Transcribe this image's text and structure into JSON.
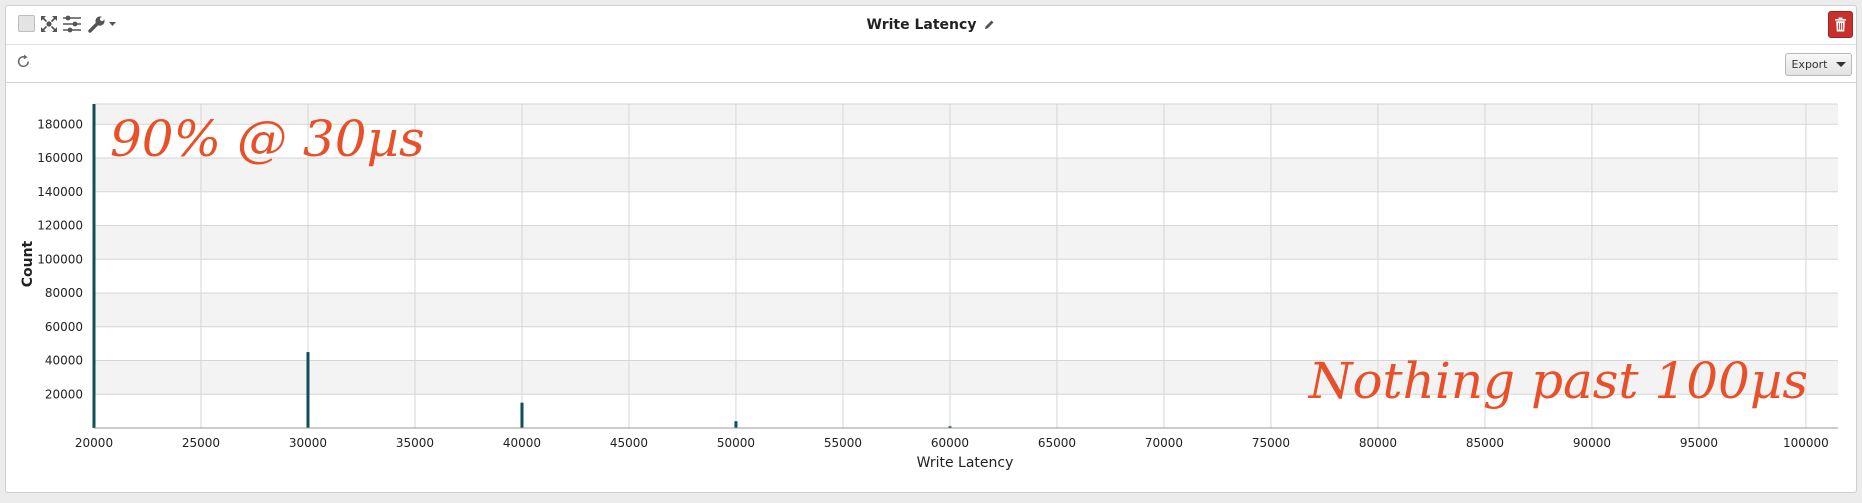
{
  "panel": {
    "title": "Write Latency",
    "export_label": "Export"
  },
  "icons": {
    "select": "checkbox",
    "expand": "expand-arrows-icon",
    "settings": "sliders-icon",
    "wrench": "wrench-icon",
    "edit": "pencil-icon",
    "delete": "trash-icon",
    "refresh": "refresh-icon"
  },
  "colors": {
    "bar": "#0f4f55",
    "annotation": "#e8502a",
    "delete_button": "#c9302c"
  },
  "annotations": {
    "top_left": "90% @ 30µs",
    "bottom_right": "Nothing past 100µs"
  },
  "chart_data": {
    "type": "bar",
    "title": "",
    "xlabel": "Write Latency",
    "ylabel": "Count",
    "xlim": [
      20000,
      101500
    ],
    "ylim": [
      0,
      192000
    ],
    "x_ticks": [
      20000,
      25000,
      30000,
      35000,
      40000,
      45000,
      50000,
      55000,
      60000,
      65000,
      70000,
      75000,
      80000,
      85000,
      90000,
      95000,
      100000
    ],
    "y_ticks": [
      20000,
      40000,
      60000,
      80000,
      100000,
      120000,
      140000,
      160000,
      180000
    ],
    "grid": true,
    "banded_background": true,
    "x": [
      20000,
      30000,
      40000,
      50000,
      60000,
      70000
    ],
    "values": [
      192000,
      45000,
      15000,
      4000,
      1000,
      300
    ]
  }
}
